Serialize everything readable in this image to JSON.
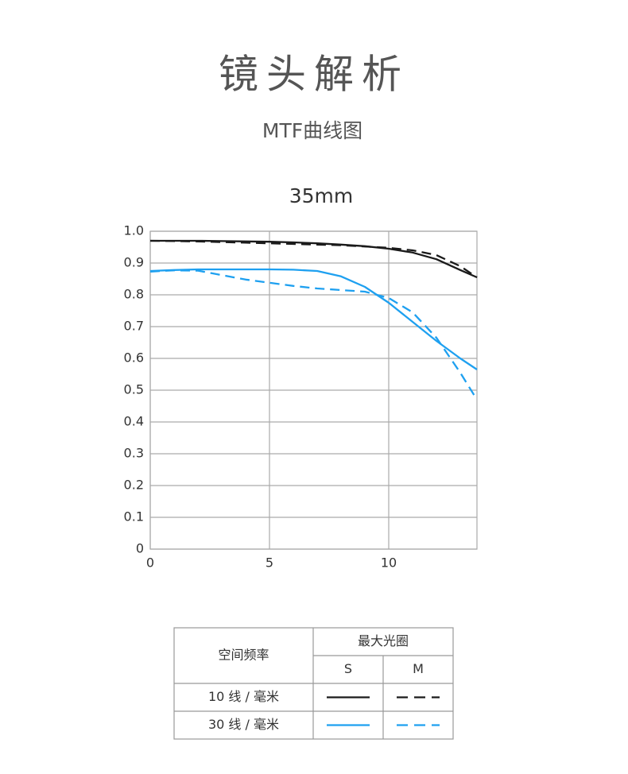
{
  "header": {
    "title": "镜头解析",
    "subtitle": "MTF曲线图"
  },
  "chart_data": {
    "type": "line",
    "title": "35mm",
    "x": [
      0,
      1,
      2,
      3,
      4,
      5,
      6,
      7,
      8,
      9,
      10,
      11,
      12,
      13,
      13.7
    ],
    "series": [
      {
        "color": "#1a1a1a",
        "style": "solid",
        "values": [
          0.97,
          0.97,
          0.97,
          0.969,
          0.968,
          0.967,
          0.965,
          0.962,
          0.958,
          0.953,
          0.945,
          0.933,
          0.912,
          0.878,
          0.855
        ]
      },
      {
        "color": "#1a1a1a",
        "style": "dashed",
        "values": [
          0.97,
          0.969,
          0.968,
          0.966,
          0.964,
          0.962,
          0.96,
          0.958,
          0.956,
          0.952,
          0.948,
          0.94,
          0.925,
          0.89,
          0.855
        ]
      },
      {
        "color": "#1ea0f0",
        "style": "solid",
        "values": [
          0.875,
          0.878,
          0.88,
          0.88,
          0.88,
          0.88,
          0.879,
          0.875,
          0.858,
          0.825,
          0.775,
          0.715,
          0.655,
          0.6,
          0.565
        ]
      },
      {
        "color": "#1ea0f0",
        "style": "dashed",
        "values": [
          0.873,
          0.877,
          0.876,
          0.862,
          0.848,
          0.838,
          0.828,
          0.82,
          0.815,
          0.81,
          0.79,
          0.745,
          0.665,
          0.555,
          0.47
        ]
      }
    ],
    "xlim": [
      0,
      13.7
    ],
    "ylim": [
      0,
      1
    ],
    "xticks": [
      0,
      5,
      10
    ],
    "yticks": [
      0,
      0.1,
      0.2,
      0.3,
      0.4,
      0.5,
      0.6,
      0.7,
      0.8,
      0.9,
      {
        "value": 1,
        "label": "1.0"
      }
    ],
    "grid": true,
    "legend_table": {
      "corner": "空间频率",
      "group": "最大光圈",
      "columns": [
        "S",
        "M"
      ],
      "rows": [
        "10 线 / 毫米",
        "30 线 / 毫米"
      ]
    }
  }
}
